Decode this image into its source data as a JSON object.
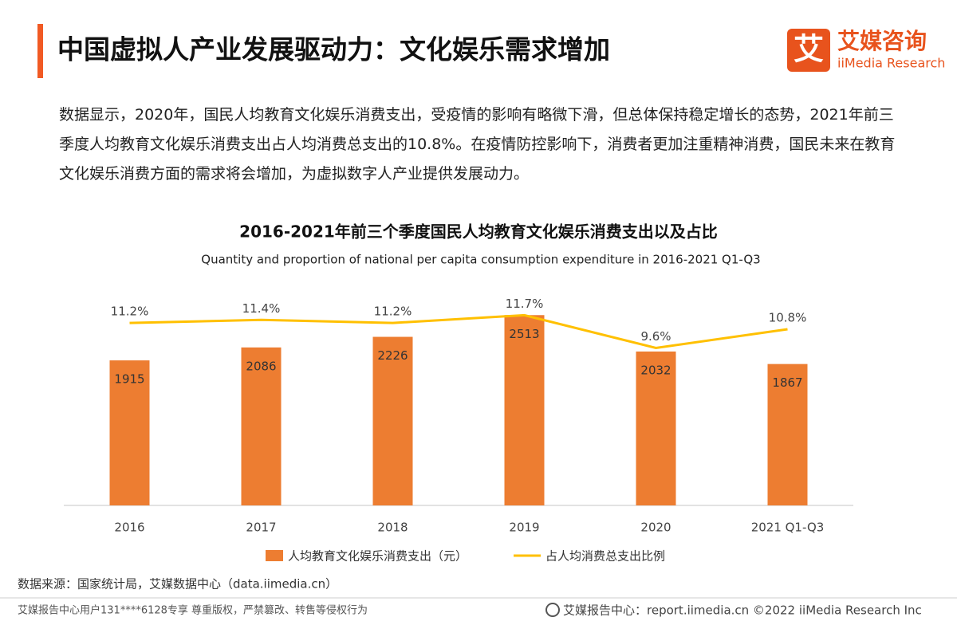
{
  "header": {
    "title": "中国虚拟人产业发展驱动力：文化娱乐需求增加",
    "logo_mark": "艾",
    "logo_name": "艾媒咨询",
    "logo_en": "iiMedia Research"
  },
  "body": {
    "text": "数据显示，2020年，国民人均教育文化娱乐消费支出，受疫情的影响有略微下滑，但总体保持稳定增长的态势，2021年前三季度人均教育文化娱乐消费支出占人均消费总支出的10.8%。在疫情防控影响下，消费者更加注重精神消费，国民未来在教育文化娱乐消费方面的需求将会增加，为虚拟数字人产业提供发展动力。"
  },
  "chart_data": {
    "type": "bar",
    "title": "2016-2021年前三个季度国民人均教育文化娱乐消费支出以及占比",
    "subtitle": "Quantity and proportion of national per capita consumption expenditure in 2016-2021 Q1-Q3",
    "categories": [
      "2016",
      "2017",
      "2018",
      "2019",
      "2020",
      "2021 Q1-Q3"
    ],
    "series": [
      {
        "name": "人均教育文化娱乐消费支出（元）",
        "type": "bar",
        "color": "#ed7d31",
        "values": [
          1915,
          2086,
          2226,
          2513,
          2032,
          1867
        ]
      },
      {
        "name": "占人均消费总支出比例",
        "type": "line",
        "axis": "y2",
        "color": "#ffc000",
        "values": [
          11.2,
          11.4,
          11.2,
          11.7,
          9.6,
          10.8
        ],
        "value_labels": [
          "11.2%",
          "11.4%",
          "11.2%",
          "11.7%",
          "9.6%",
          "10.8%"
        ]
      }
    ],
    "ylim": [
      0,
      2800
    ],
    "y2lim": [
      -0.5,
      13.1
    ],
    "grid": false,
    "legend": "bottom"
  },
  "source": "数据来源：国家统计局，艾媒数据中心（data.iimedia.cn）",
  "footer": {
    "left": "艾媒报告中心用户131****6128专享 尊重版权，严禁篡改、转售等侵权行为",
    "right": "艾媒报告中心：report.iimedia.cn  ©2022  iiMedia Research  Inc"
  }
}
